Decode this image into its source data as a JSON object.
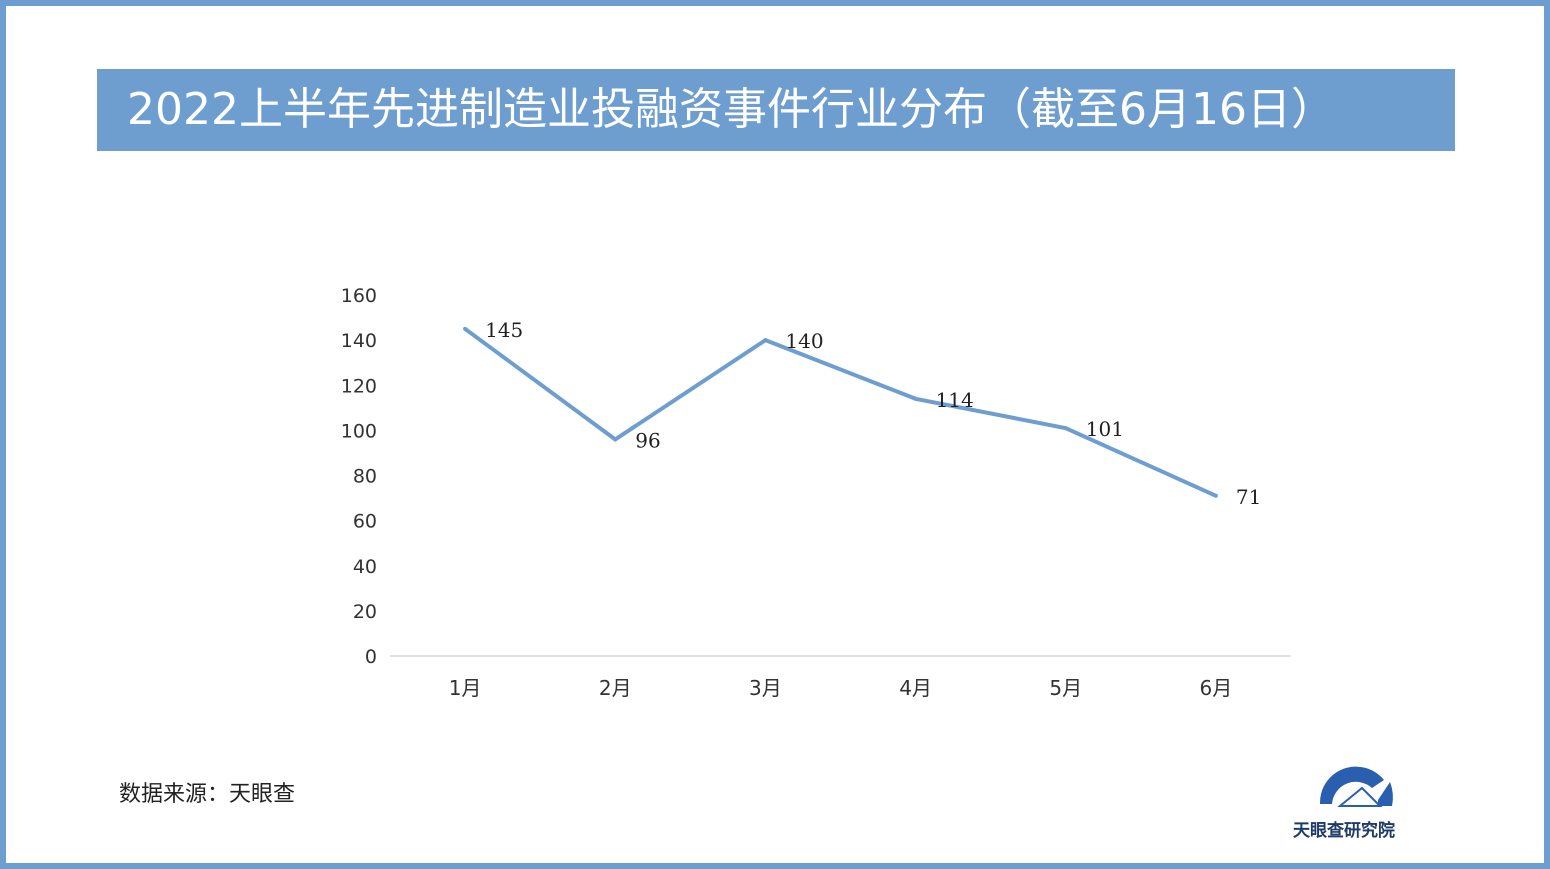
{
  "title": "2022上半年先进制造业投融资事件行业分布（截至6月16日）",
  "source": "数据来源：天眼查",
  "logo": {
    "text": "天眼查研究院",
    "icon": "tianyancha-logo-icon",
    "color": "#2a5fb0"
  },
  "colors": {
    "accent": "#6e9ecf",
    "line": "#6e9ecf",
    "axis": "#d9d9d9"
  },
  "chart_data": {
    "type": "line",
    "title": "",
    "xlabel": "",
    "ylabel": "",
    "categories": [
      "1月",
      "2月",
      "3月",
      "4月",
      "5月",
      "6月"
    ],
    "series": [
      {
        "values": [
          145,
          96,
          140,
          114,
          101,
          71
        ]
      }
    ],
    "ylim": [
      0,
      160
    ],
    "yticks": [
      0,
      20,
      40,
      60,
      80,
      100,
      120,
      140,
      160
    ],
    "data_labels": [
      "145",
      "96",
      "140",
      "114",
      "101",
      "71"
    ],
    "grid": false,
    "legend": "none"
  }
}
